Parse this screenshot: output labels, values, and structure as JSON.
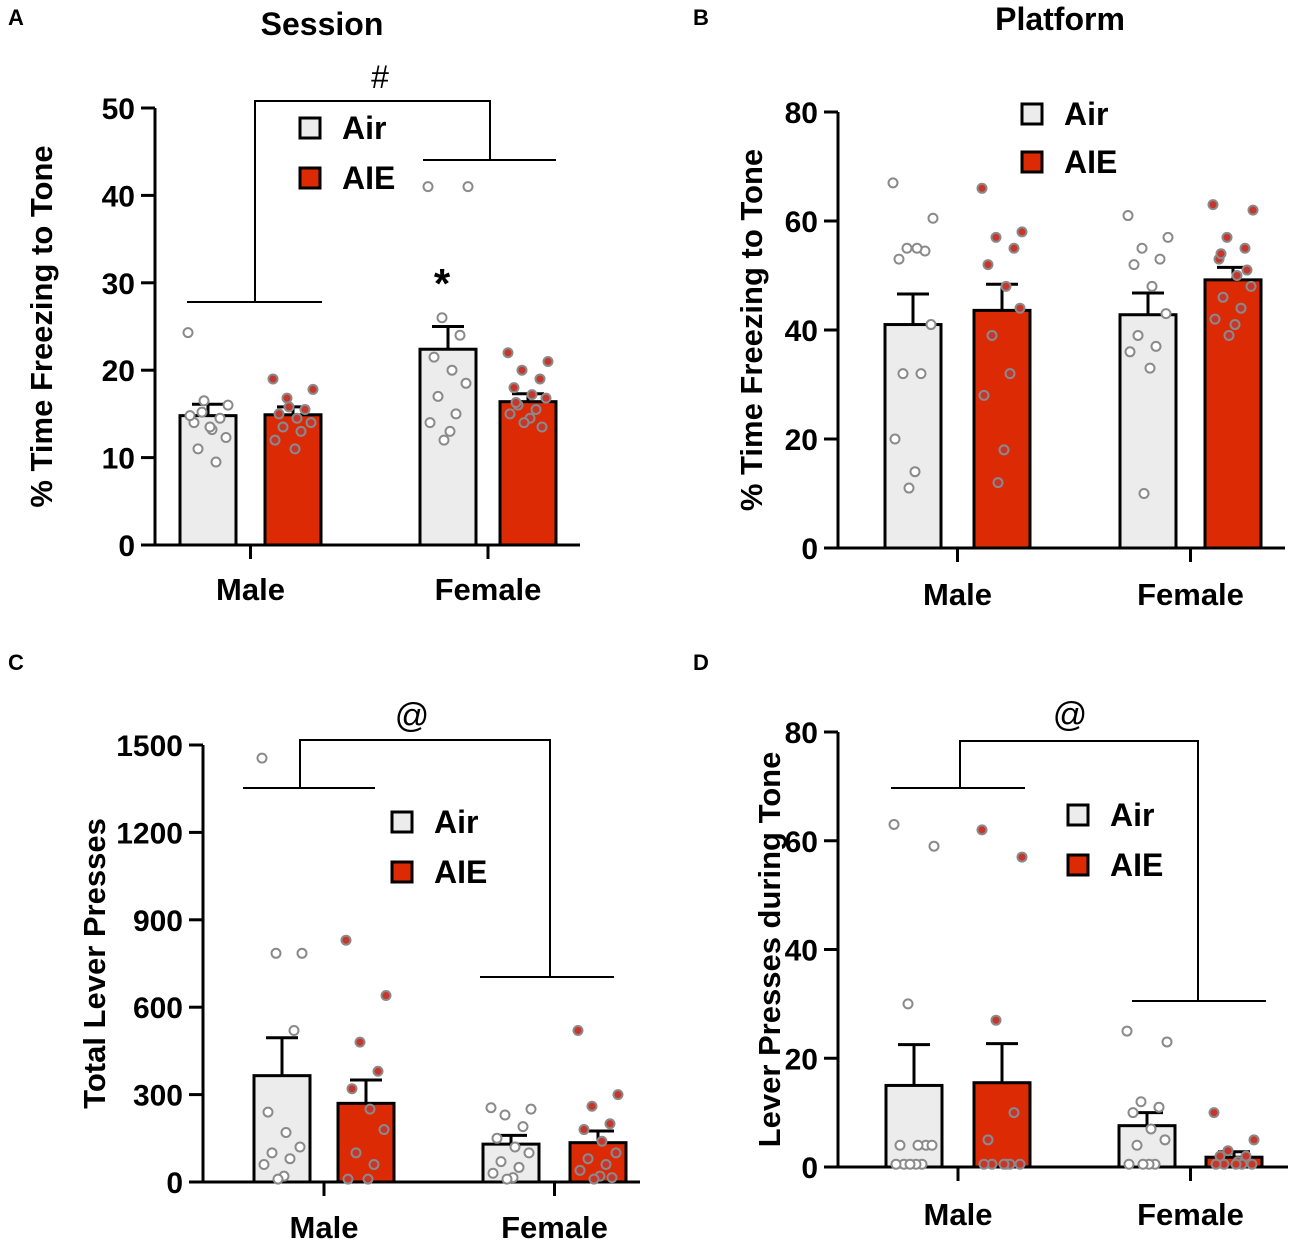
{
  "colors": {
    "air_fill": "#ececec",
    "aie_fill": "#dc2a05",
    "axis": "#000000",
    "air_dot": "#ffffff",
    "aie_dot": "#c8352a",
    "dot_stroke": "#8a8a8a"
  },
  "chart_data": [
    {
      "panel_label": "A",
      "type": "bar",
      "title": "Session",
      "ylabel": "% Time Freezing to Tone",
      "xlabel": "",
      "categories": [
        "Male",
        "Female"
      ],
      "ylim": [
        0,
        50
      ],
      "yticks": [
        "0",
        "10",
        "20",
        "30",
        "40",
        "50"
      ],
      "legend": {
        "air": "Air",
        "aie": "AIE",
        "position": "top-center"
      },
      "series": [
        {
          "name": "Air",
          "values": [
            14.8,
            22.4
          ],
          "sem": [
            1.3,
            2.6
          ],
          "points": [
            [
              24.3,
              16.0,
              15.2,
              14.5,
              14.0,
              13.2,
              12.3,
              11.0,
              9.5,
              14.8,
              13.5,
              16.5
            ],
            [
              41,
              41,
              26,
              24,
              21.5,
              20,
              18.5,
              17,
              15,
              14,
              13,
              12
            ]
          ]
        },
        {
          "name": "AIE",
          "values": [
            14.9,
            16.4
          ],
          "sem": [
            0.9,
            0.9
          ],
          "points": [
            [
              19.0,
              17.8,
              16.8,
              15.5,
              15.0,
              14.5,
              14.0,
              13.5,
              13.0,
              12.0,
              11.0,
              15.8
            ],
            [
              22.0,
              21.0,
              20.0,
              19.0,
              18.0,
              17.2,
              16.8,
              16.0,
              15.5,
              15.0,
              14.5,
              14.0,
              13.5,
              16.3
            ]
          ]
        }
      ],
      "annotations": {
        "interaction": "#",
        "posthoc": "*"
      }
    },
    {
      "panel_label": "B",
      "type": "bar",
      "title": "Platform",
      "ylabel": "% Time Freezing to Tone",
      "xlabel": "",
      "categories": [
        "Male",
        "Female"
      ],
      "ylim": [
        0,
        80
      ],
      "yticks": [
        "0",
        "20",
        "40",
        "60",
        "80"
      ],
      "legend": {
        "air": "Air",
        "aie": "AIE",
        "position": "top-center"
      },
      "series": [
        {
          "name": "Air",
          "values": [
            41.0,
            42.8
          ],
          "sem": [
            5.6,
            4.0
          ],
          "points": [
            [
              67,
              60.5,
              55,
              54.5,
              53,
              55,
              41,
              32,
              32,
              20,
              14,
              11
            ],
            [
              61,
              57,
              55,
              53,
              52,
              48,
              43,
              39,
              37,
              36,
              33,
              10
            ]
          ]
        },
        {
          "name": "AIE",
          "values": [
            43.6,
            49.2
          ],
          "sem": [
            4.8,
            2.3
          ],
          "points": [
            [
              66,
              58,
              57,
              55,
              52,
              48,
              44,
              39,
              32,
              28,
              18,
              12
            ],
            [
              63,
              62,
              57,
              55,
              53,
              50,
              48,
              46,
              44,
              42,
              41,
              39,
              51,
              54
            ]
          ]
        }
      ],
      "annotations": {}
    },
    {
      "panel_label": "C",
      "type": "bar",
      "title": "",
      "ylabel": "Total Lever Presses",
      "xlabel": "",
      "categories": [
        "Male",
        "Female"
      ],
      "ylim": [
        0,
        1500
      ],
      "yticks": [
        "0",
        "300",
        "600",
        "900",
        "1200",
        "1500"
      ],
      "legend": {
        "air": "Air",
        "aie": "AIE",
        "position": "middle-right"
      },
      "series": [
        {
          "name": "Air",
          "values": [
            365,
            130
          ],
          "sem": [
            130,
            30
          ],
          "points": [
            [
              1455,
              785,
              785,
              520,
              240,
              170,
              120,
              100,
              80,
              60,
              20,
              10
            ],
            [
              255,
              250,
              230,
              190,
              150,
              120,
              100,
              70,
              50,
              30,
              15,
              10
            ]
          ]
        },
        {
          "name": "AIE",
          "values": [
            270,
            135
          ],
          "sem": [
            80,
            40
          ],
          "points": [
            [
              830,
              640,
              480,
              380,
              320,
              250,
              180,
              100,
              60,
              10,
              10
            ],
            [
              520,
              300,
              260,
              200,
              180,
              140,
              100,
              80,
              60,
              40,
              20,
              10,
              15
            ]
          ]
        }
      ],
      "annotations": {
        "main_effect": "@"
      }
    },
    {
      "panel_label": "D",
      "type": "bar",
      "title": "",
      "ylabel": "Lever Presses during Tone",
      "xlabel": "",
      "categories": [
        "Male",
        "Female"
      ],
      "ylim": [
        0,
        80
      ],
      "yticks": [
        "0",
        "20",
        "40",
        "60",
        "80"
      ],
      "legend": {
        "air": "Air",
        "aie": "AIE",
        "position": "middle-right"
      },
      "series": [
        {
          "name": "Air",
          "values": [
            15.0,
            7.6
          ],
          "sem": [
            7.5,
            2.4
          ],
          "points": [
            [
              63,
              59,
              30,
              4,
              4,
              4,
              4,
              0.5,
              0.5,
              0.5,
              0.5,
              0.5
            ],
            [
              25,
              23,
              12,
              11,
              10,
              7,
              5,
              4,
              0.5,
              0.5,
              0.5,
              0.5
            ]
          ]
        },
        {
          "name": "AIE",
          "values": [
            15.5,
            1.8
          ],
          "sem": [
            7.2,
            1.0
          ],
          "points": [
            [
              62,
              57,
              27,
              10,
              5,
              0.5,
              0.5,
              0.5,
              0.5,
              0.5,
              0.5
            ],
            [
              10,
              5,
              3,
              2,
              2,
              1,
              0.5,
              0.5,
              0.5,
              0.5,
              0.5
            ]
          ]
        }
      ],
      "annotations": {
        "main_effect": "@"
      }
    }
  ]
}
